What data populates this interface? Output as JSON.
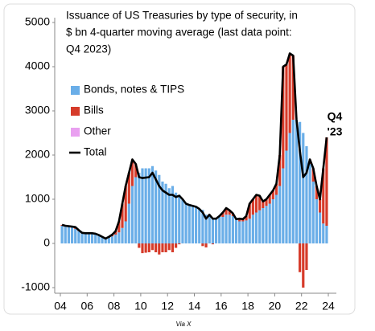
{
  "chart_data": {
    "type": "bar-line",
    "title": [
      "Issuance of US Treasuries by type of security, in",
      "$ bn 4-quarter moving average (last data point:",
      "Q4 2023)"
    ],
    "annotation": [
      "Q4",
      "'23"
    ],
    "source": "Via X",
    "x": [
      2004,
      2004.25,
      2004.5,
      2004.75,
      2005,
      2005.25,
      2005.5,
      2005.75,
      2006,
      2006.25,
      2006.5,
      2006.75,
      2007,
      2007.25,
      2007.5,
      2007.75,
      2008,
      2008.25,
      2008.5,
      2008.75,
      2009,
      2009.25,
      2009.5,
      2009.75,
      2010,
      2010.25,
      2010.5,
      2010.75,
      2011,
      2011.25,
      2011.5,
      2011.75,
      2012,
      2012.25,
      2012.5,
      2012.75,
      2013,
      2013.25,
      2013.5,
      2013.75,
      2014,
      2014.25,
      2014.5,
      2014.75,
      2015,
      2015.25,
      2015.5,
      2015.75,
      2016,
      2016.25,
      2016.5,
      2016.75,
      2017,
      2017.25,
      2017.5,
      2017.75,
      2018,
      2018.25,
      2018.5,
      2018.75,
      2019,
      2019.25,
      2019.5,
      2019.75,
      2020,
      2020.25,
      2020.5,
      2020.75,
      2021,
      2021.25,
      2021.5,
      2021.75,
      2022,
      2022.25,
      2022.5,
      2022.75,
      2023,
      2023.25,
      2023.5,
      2023.75
    ],
    "series": [
      {
        "name": "Bonds, notes & TIPS",
        "color": "#6aaee8",
        "values": [
          400,
          380,
          370,
          360,
          330,
          280,
          230,
          220,
          220,
          220,
          210,
          190,
          150,
          110,
          130,
          160,
          200,
          250,
          350,
          500,
          900,
          1300,
          1500,
          1600,
          1700,
          1700,
          1700,
          1750,
          1650,
          1550,
          1400,
          1350,
          1250,
          1300,
          1150,
          1100,
          1000,
          900,
          870,
          850,
          830,
          780,
          760,
          650,
          650,
          580,
          560,
          600,
          600,
          650,
          650,
          620,
          550,
          500,
          500,
          520,
          560,
          650,
          700,
          750,
          800,
          850,
          900,
          1000,
          1100,
          1300,
          1700,
          2100,
          2500,
          2800,
          2800,
          2750,
          2500,
          2200,
          1800,
          1400,
          1000,
          700,
          450,
          400
        ]
      },
      {
        "name": "Bills",
        "color": "#d63b2a",
        "values": [
          20,
          20,
          20,
          20,
          40,
          20,
          10,
          10,
          10,
          10,
          10,
          0,
          0,
          0,
          20,
          40,
          80,
          250,
          550,
          800,
          700,
          600,
          300,
          -100,
          -220,
          -210,
          -200,
          -150,
          -200,
          -250,
          -200,
          -200,
          -150,
          -200,
          -100,
          -20,
          0,
          0,
          0,
          0,
          0,
          0,
          -60,
          -90,
          0,
          -20,
          0,
          20,
          100,
          150,
          100,
          60,
          0,
          60,
          50,
          100,
          340,
          350,
          400,
          330,
          150,
          150,
          200,
          200,
          250,
          700,
          2300,
          1950,
          1800,
          1450,
          0,
          -650,
          -1000,
          -600,
          100,
          300,
          300,
          300,
          1250,
          2000
        ]
      },
      {
        "name": "Other",
        "color": "#e9a0f0",
        "values": [
          0,
          0,
          0,
          0,
          0,
          0,
          0,
          0,
          0,
          0,
          0,
          0,
          0,
          0,
          0,
          0,
          0,
          0,
          0,
          0,
          0,
          0,
          0,
          0,
          0,
          0,
          0,
          0,
          0,
          0,
          0,
          0,
          0,
          0,
          0,
          0,
          0,
          0,
          0,
          0,
          0,
          0,
          0,
          0,
          0,
          0,
          0,
          0,
          0,
          0,
          0,
          0,
          0,
          0,
          0,
          0,
          0,
          0,
          0,
          0,
          0,
          0,
          0,
          0,
          0,
          0,
          0,
          0,
          0,
          0,
          0,
          0,
          0,
          0,
          0,
          0,
          0,
          0,
          0,
          0
        ]
      },
      {
        "name": "Total",
        "color": "#000000",
        "values": [
          420,
          400,
          390,
          380,
          370,
          300,
          240,
          230,
          230,
          230,
          220,
          190,
          150,
          110,
          150,
          200,
          280,
          500,
          900,
          1300,
          1600,
          1900,
          1800,
          1500,
          1480,
          1490,
          1500,
          1600,
          1450,
          1300,
          1200,
          1150,
          1100,
          1100,
          1050,
          1080,
          1000,
          900,
          870,
          850,
          830,
          780,
          700,
          560,
          650,
          560,
          560,
          620,
          700,
          800,
          750,
          680,
          550,
          560,
          550,
          620,
          900,
          1000,
          1100,
          1080,
          950,
          1000,
          1100,
          1200,
          1350,
          2000,
          4000,
          4050,
          4300,
          4250,
          2800,
          2100,
          1500,
          1600,
          1900,
          1700,
          1300,
          1000,
          1700,
          2400
        ]
      }
    ],
    "xlim": [
      2004,
      2024
    ],
    "xticks": [
      {
        "value": 2004,
        "label": "04"
      },
      {
        "value": 2006,
        "label": "06"
      },
      {
        "value": 2008,
        "label": "08"
      },
      {
        "value": 2010,
        "label": "10"
      },
      {
        "value": 2012,
        "label": "12"
      },
      {
        "value": 2014,
        "label": "14"
      },
      {
        "value": 2016,
        "label": "16"
      },
      {
        "value": 2018,
        "label": "18"
      },
      {
        "value": 2020,
        "label": "20"
      },
      {
        "value": 2022,
        "label": "22"
      },
      {
        "value": 2024,
        "label": "24"
      }
    ],
    "ylim": [
      -1000,
      5000
    ],
    "yticks": [
      -1000,
      0,
      1000,
      2000,
      3000,
      4000,
      5000
    ]
  }
}
